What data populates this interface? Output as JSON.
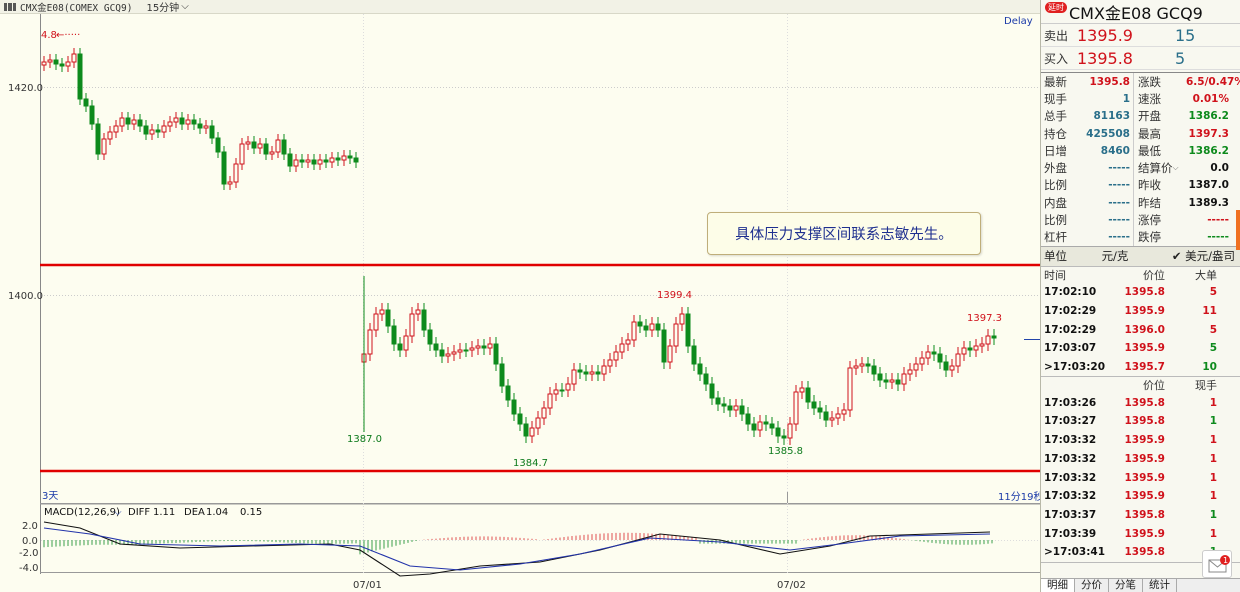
{
  "header": {
    "code": "CMX金E08(COMEX GCQ9)",
    "period": "15分钟"
  },
  "chart": {
    "delay": "Delay",
    "y_ticks": [
      "1420.0",
      "1400.0"
    ],
    "macd_ticks": [
      "2.0",
      "0.0",
      "-2.0",
      "-4.0"
    ],
    "dates": [
      "07/01",
      "07/02"
    ],
    "span_left": "3天",
    "span_right": "11分19秒",
    "macd_title": "MACD(12,26,9)",
    "diff_label": "DIFF",
    "diff_value": "1.11",
    "dea_label": "DEA",
    "dea_value": "1.04",
    "macd_value": "0.15",
    "marks": {
      "top_left": "4.8",
      "low1": "1387.0",
      "high": "1399.4",
      "low2": "1384.7",
      "low3": "1385.8",
      "right_high": "1397.3"
    },
    "annotation": "具体压力支撑区间联系志敏先生。",
    "support_line_color": "#e00000"
  },
  "panel": {
    "badge": "延时",
    "title": "CMX金E08  GCQ9",
    "sell_label": "卖出",
    "sell_price": "1395.9",
    "sell_vol": "15",
    "buy_label": "买入",
    "buy_price": "1395.8",
    "buy_vol": "5",
    "stats": [
      {
        "k1": "最新",
        "v1": "1395.8",
        "c1": "red",
        "k2": "涨跌",
        "v2": "6.5/0.47%",
        "c2": "red"
      },
      {
        "k1": "现手",
        "v1": "1",
        "c1": "teal",
        "k2": "速涨",
        "v2": "0.01%",
        "c2": "red"
      },
      {
        "k1": "总手",
        "v1": "81163",
        "c1": "teal",
        "k2": "开盘",
        "v2": "1386.2",
        "c2": "green"
      },
      {
        "k1": "持仓",
        "v1": "425508",
        "c1": "teal",
        "k2": "最高",
        "v2": "1397.3",
        "c2": "red"
      },
      {
        "k1": "日增",
        "v1": "8460",
        "c1": "teal",
        "k2": "最低",
        "v2": "1386.2",
        "c2": "green"
      },
      {
        "k1": "外盘",
        "v1": "-----",
        "c1": "teal",
        "k2": "结算价",
        "v2": "0.0",
        "c2": "blk"
      },
      {
        "k1": "比例",
        "v1": "-----",
        "c1": "teal",
        "k2": "昨收",
        "v2": "1387.0",
        "c2": "blk"
      },
      {
        "k1": "内盘",
        "v1": "-----",
        "c1": "teal",
        "k2": "昨结",
        "v2": "1389.3",
        "c2": "blk"
      },
      {
        "k1": "比例",
        "v1": "-----",
        "c1": "teal",
        "k2": "涨停",
        "v2": "-----",
        "c2": "red"
      },
      {
        "k1": "杠杆",
        "v1": "-----",
        "c1": "teal",
        "k2": "跌停",
        "v2": "-----",
        "c2": "green"
      }
    ],
    "unit_label": "单位",
    "unit1": "元/克",
    "unit2": "美元/盎司",
    "orders_head": [
      "时间",
      "价位",
      "大单"
    ],
    "orders": [
      {
        "t": "17:02:10",
        "p": "1395.8",
        "v": "5",
        "vc": "red"
      },
      {
        "t": "17:02:29",
        "p": "1395.9",
        "v": "11",
        "vc": "red"
      },
      {
        "t": "17:02:29",
        "p": "1396.0",
        "v": "5",
        "vc": "red"
      },
      {
        "t": "17:03:07",
        "p": "1395.9",
        "v": "5",
        "vc": "green"
      },
      {
        "t": ">17:03:20",
        "p": "1395.7",
        "v": "10",
        "vc": "green"
      }
    ],
    "ticks_head": [
      "",
      "价位",
      "现手"
    ],
    "ticks": [
      {
        "t": "17:03:26",
        "p": "1395.8",
        "v": "1",
        "vc": "red"
      },
      {
        "t": "17:03:27",
        "p": "1395.8",
        "v": "1",
        "vc": "green"
      },
      {
        "t": "17:03:32",
        "p": "1395.9",
        "v": "1",
        "vc": "red"
      },
      {
        "t": "17:03:32",
        "p": "1395.9",
        "v": "1",
        "vc": "red"
      },
      {
        "t": "17:03:32",
        "p": "1395.9",
        "v": "1",
        "vc": "red"
      },
      {
        "t": "17:03:32",
        "p": "1395.9",
        "v": "1",
        "vc": "red"
      },
      {
        "t": "17:03:37",
        "p": "1395.8",
        "v": "1",
        "vc": "green"
      },
      {
        "t": "17:03:39",
        "p": "1395.9",
        "v": "1",
        "vc": "red"
      },
      {
        "t": ">17:03:41",
        "p": "1395.8",
        "v": "1",
        "vc": "green"
      }
    ],
    "tabs": [
      "明细",
      "分价",
      "分笔",
      "统计"
    ],
    "mail_count": "1"
  }
}
